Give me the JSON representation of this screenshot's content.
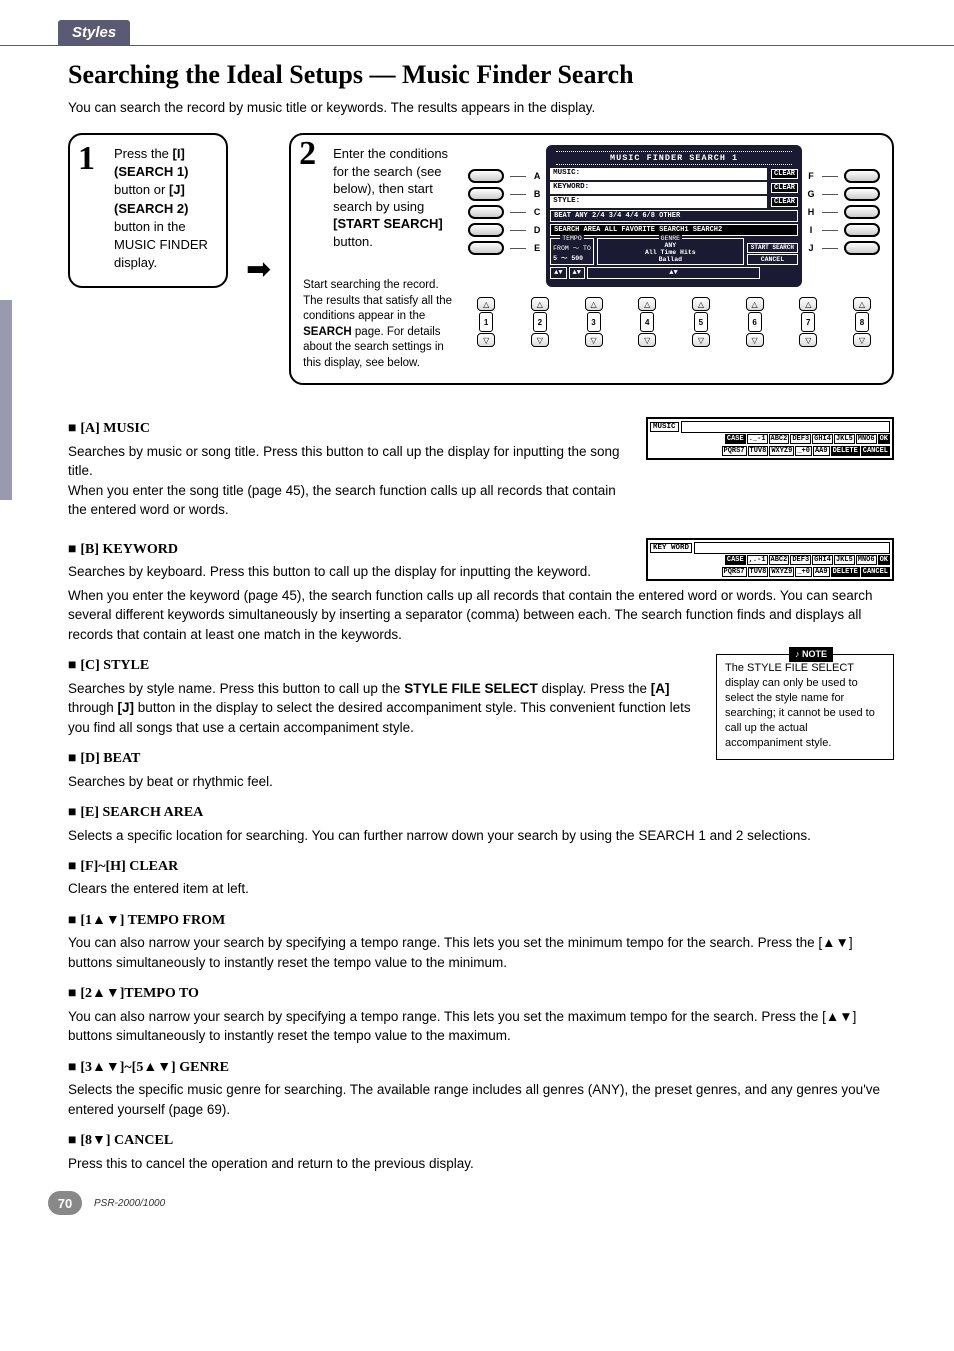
{
  "tab_label": "Styles",
  "heading": "Searching the Ideal Setups — Music Finder Search",
  "intro": "You can search the record by music title or keywords. The results appears in the display.",
  "step1": {
    "num": "1",
    "text_parts": [
      "Press the ",
      "[I] (SEARCH 1)",
      " button or ",
      "[J] (SEARCH 2)",
      " button in the MUSIC FINDER display."
    ]
  },
  "step2": {
    "num": "2",
    "text_parts": [
      "Enter the conditions for the search (see below), then start search by using ",
      "[START SEARCH]",
      " button."
    ],
    "subnote_parts": [
      "Start searching the record. The results that satisfy all the conditions appear in the ",
      "SEARCH",
      " page. For details about the search settings in this display, see below."
    ]
  },
  "lcd": {
    "title": "MUSIC FINDER SEARCH 1",
    "rows": [
      {
        "left": "A",
        "label": "MUSIC:",
        "tag": "CLEAR",
        "right": "F"
      },
      {
        "left": "B",
        "label": "KEYWORD:",
        "tag": "CLEAR",
        "right": "G"
      },
      {
        "left": "C",
        "label": "STYLE:",
        "tag": "CLEAR",
        "right": "H"
      },
      {
        "left": "D",
        "beat": "BEAT ANY 2/4 3/4 4/4 6/8 OTHER",
        "right": "I"
      },
      {
        "left": "E",
        "area": "SEARCH AREA  ALL FAVORITE SEARCH1 SEARCH2",
        "right": "J"
      }
    ],
    "tempo_label": "TEMPO",
    "tempo_from": "FROM ～ TO",
    "tempo_vals": "5  ～ 500",
    "genre_label": "GENRE",
    "genre_vals": [
      "ANY",
      "All Time Hits",
      "Ballad"
    ],
    "start_search": "START SEARCH",
    "cancel": "CANCEL",
    "arrows": [
      "▲▼",
      "▲▼",
      "▲▼"
    ],
    "spinner_nums": [
      "1",
      "2",
      "3",
      "4",
      "5",
      "6",
      "7",
      "8"
    ]
  },
  "mini_music": {
    "label": "MUSIC",
    "case": "CASE",
    "keys_row1": [
      "._-1",
      "ABC2",
      "DEF3",
      "GHI4",
      "JKL5",
      "MNO6",
      "OK"
    ],
    "keys_row2": [
      "PQRS7",
      "TUV8",
      "WXYZ9",
      "_+0",
      "AA9",
      "DELETE",
      "CANCEL"
    ]
  },
  "mini_keyword": {
    "label": "KEY WORD",
    "case": "CASE",
    "keys_row1": [
      ",.-1",
      "ABC2",
      "DEF3",
      "GHI4",
      "JKL5",
      "MNO6",
      "OK"
    ],
    "keys_row2": [
      "PQRS7",
      "TUV8",
      "WXYZ9",
      "_+0",
      "AA9",
      "DELETE",
      "CANCEL"
    ]
  },
  "sections": {
    "a_music": {
      "title": "[A] MUSIC",
      "p1": "Searches by music or song title. Press this button to call up the display for inputting the song title.",
      "p2": "When you enter the song title (page 45), the search function calls up all records that contain the entered word or words."
    },
    "b_keyword": {
      "title": "[B] KEYWORD",
      "p1": "Searches by keyboard. Press this button to call up the display for inputting the keyword.",
      "p2": "When you enter the keyword (page 45), the search function calls up all records that contain the entered word or words. You can search several different keywords simultaneously by inserting a separator (comma) between each. The search function finds and displays all records that contain at least one match in the keywords."
    },
    "c_style": {
      "title": "[C] STYLE",
      "body_parts": [
        "Searches by style name. Press this button to call up the ",
        "STYLE FILE SELECT",
        " display. Press the ",
        "[A]",
        " through ",
        "[J]",
        " button in the display to select the desired accompaniment style. This convenient function lets you find all songs that use a certain accompaniment style."
      ]
    },
    "d_beat": {
      "title": "[D] BEAT",
      "body": "Searches by beat or rhythmic feel."
    },
    "e_area": {
      "title": "[E] SEARCH AREA",
      "body": "Selects a specific location for searching. You can further narrow down your search by using the SEARCH 1 and 2 selections."
    },
    "fh_clear": {
      "title": "[F]~[H] CLEAR",
      "body": "Clears the entered item at left."
    },
    "tempo_from": {
      "title": "[1▲▼] TEMPO FROM",
      "body": "You can also narrow your search by specifying a tempo range. This lets you set the minimum tempo for the search. Press the [▲▼] buttons simultaneously to instantly reset the tempo value to the minimum."
    },
    "tempo_to": {
      "title": "[2▲▼]TEMPO TO",
      "body": "You can also narrow your search by specifying a tempo range. This lets you set the maximum tempo for the search. Press the [▲▼] buttons simultaneously to instantly reset the tempo value to the maximum."
    },
    "genre": {
      "title": "[3▲▼]~[5▲▼] GENRE",
      "body": "Selects the specific music genre for searching. The available range includes all genres (ANY), the preset genres, and any genres you've entered yourself (page 69)."
    },
    "cancel": {
      "title": "[8▼] CANCEL",
      "body": "Press this to cancel the operation and return to the previous display."
    }
  },
  "note": {
    "label": "NOTE",
    "body": "The STYLE FILE SELECT display can only be used to select the style name for searching; it cannot be used to call up the actual accompaniment style."
  },
  "footer": {
    "page": "70",
    "model": "PSR-2000/1000"
  }
}
